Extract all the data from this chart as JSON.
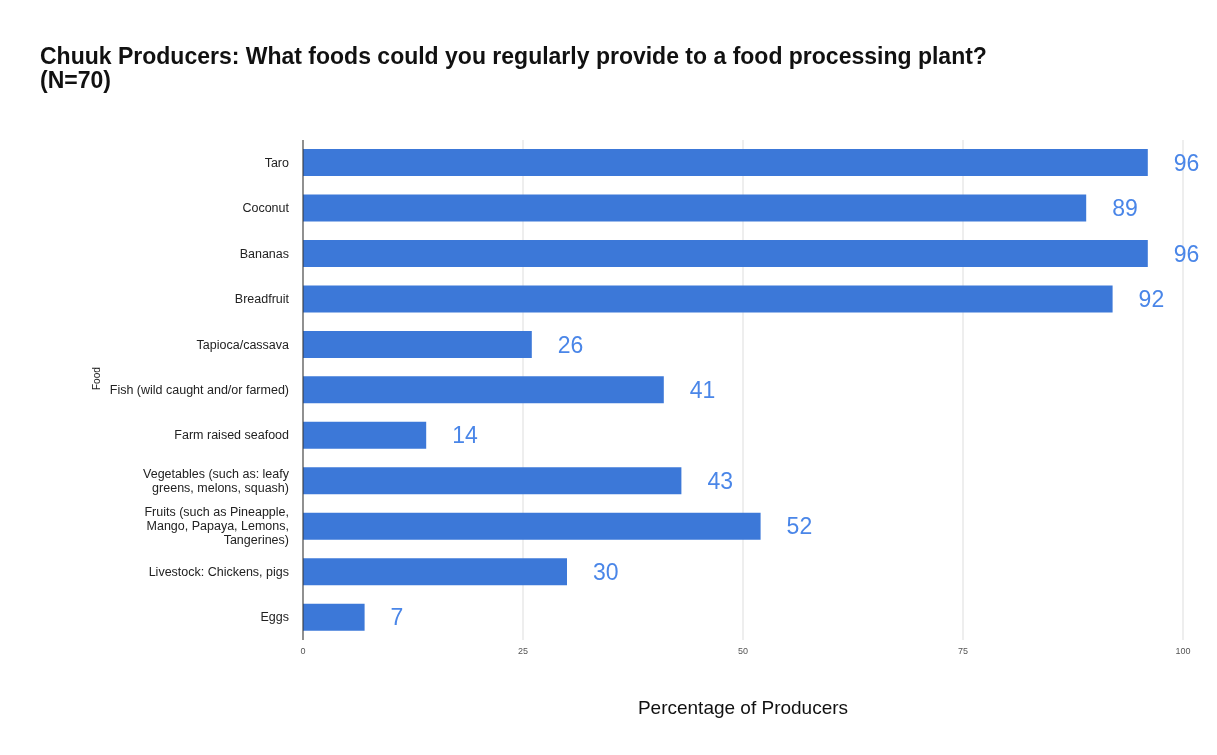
{
  "chart_data": {
    "type": "bar",
    "orientation": "horizontal",
    "title": "Chuuk Producers: What foods could you regularly provide to a food processing plant? (N=70)",
    "xlabel": "Percentage of Producers",
    "ylabel": "Food",
    "categories": [
      "Taro",
      "Coconut",
      "Bananas",
      "Breadfruit",
      "Tapioca/cassava",
      "Fish (wild caught and/or farmed)",
      "Farm raised seafood",
      "Vegetables (such as: leafy greens, melons, squash)",
      "Fruits (such as Pineapple, Mango, Papaya, Lemons, Tangerines)",
      "Livestock: Chickens, pigs",
      "Eggs"
    ],
    "values": [
      96,
      89,
      96,
      92,
      26,
      41,
      14,
      43,
      52,
      30,
      7
    ],
    "color": "#3c78d8",
    "xlim": [
      0,
      100
    ],
    "xticks": [
      0,
      25,
      50,
      75,
      100
    ],
    "grid": "x",
    "data_labels": true
  }
}
